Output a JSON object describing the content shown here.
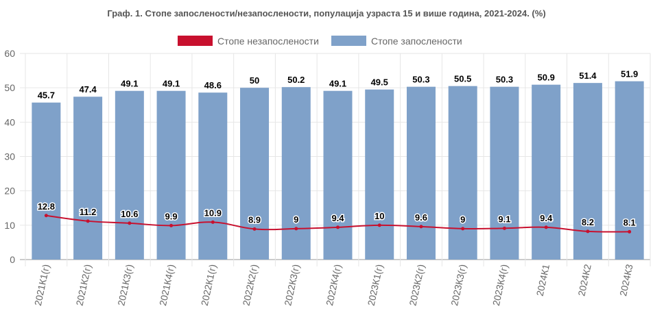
{
  "chart_data": {
    "type": "bar",
    "title": "Граф. 1. Стопе запослености/незапослености, популација узраста 15 и више година, 2021-2024. (%)",
    "categories": [
      "2021К1(г)",
      "2021К2(г)",
      "2021К3(г)",
      "2021К4(г)",
      "2022К1(г)",
      "2022К2(г)",
      "2022К3(г)",
      "2022К4(г)",
      "2023К1(г)",
      "2023К2(г)",
      "2023К3(г)",
      "2023К4(г)",
      "2024К1",
      "2024К2",
      "2024К3"
    ],
    "series": [
      {
        "name": "Стопе незапослености",
        "type": "line",
        "color": "#c8102e",
        "values": [
          12.8,
          11.2,
          10.6,
          9.9,
          10.9,
          8.9,
          9,
          9.4,
          10,
          9.6,
          9,
          9.1,
          9.4,
          8.2,
          8.1
        ]
      },
      {
        "name": "Стопе запослености",
        "type": "bar",
        "color": "#7fa1c9",
        "values": [
          45.7,
          47.4,
          49.1,
          49.1,
          48.6,
          50,
          50.2,
          49.1,
          49.5,
          50.3,
          50.5,
          50.3,
          50.9,
          51.4,
          51.9
        ]
      }
    ],
    "ylim": [
      0,
      60
    ],
    "yticks": [
      0,
      10,
      20,
      30,
      40,
      50,
      60
    ],
    "grid": true,
    "legend": "top",
    "xlabel": "",
    "ylabel": ""
  }
}
